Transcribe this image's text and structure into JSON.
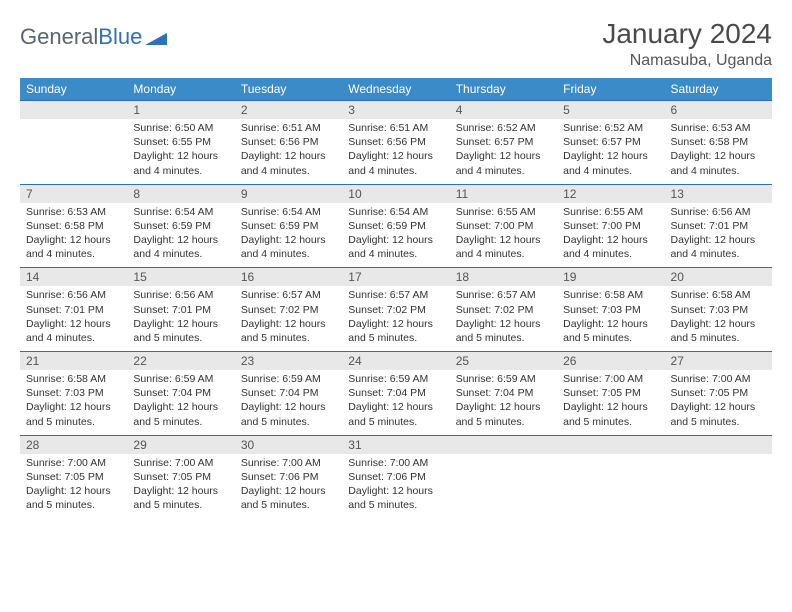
{
  "logo": {
    "part1": "General",
    "part2": "Blue"
  },
  "title": "January 2024",
  "location": "Namasuba, Uganda",
  "colors": {
    "header_bg": "#3b8bc9",
    "header_text": "#ffffff",
    "daynum_bg": "#e8e8e8",
    "border": "#2d72b8",
    "logo_gray": "#5a6570",
    "logo_blue": "#2d72b8"
  },
  "weekdays": [
    "Sunday",
    "Monday",
    "Tuesday",
    "Wednesday",
    "Thursday",
    "Friday",
    "Saturday"
  ],
  "weeks": [
    [
      {
        "n": "",
        "empty": true
      },
      {
        "n": "1",
        "sunrise": "Sunrise: 6:50 AM",
        "sunset": "Sunset: 6:55 PM",
        "day1": "Daylight: 12 hours",
        "day2": "and 4 minutes."
      },
      {
        "n": "2",
        "sunrise": "Sunrise: 6:51 AM",
        "sunset": "Sunset: 6:56 PM",
        "day1": "Daylight: 12 hours",
        "day2": "and 4 minutes."
      },
      {
        "n": "3",
        "sunrise": "Sunrise: 6:51 AM",
        "sunset": "Sunset: 6:56 PM",
        "day1": "Daylight: 12 hours",
        "day2": "and 4 minutes."
      },
      {
        "n": "4",
        "sunrise": "Sunrise: 6:52 AM",
        "sunset": "Sunset: 6:57 PM",
        "day1": "Daylight: 12 hours",
        "day2": "and 4 minutes."
      },
      {
        "n": "5",
        "sunrise": "Sunrise: 6:52 AM",
        "sunset": "Sunset: 6:57 PM",
        "day1": "Daylight: 12 hours",
        "day2": "and 4 minutes."
      },
      {
        "n": "6",
        "sunrise": "Sunrise: 6:53 AM",
        "sunset": "Sunset: 6:58 PM",
        "day1": "Daylight: 12 hours",
        "day2": "and 4 minutes."
      }
    ],
    [
      {
        "n": "7",
        "sunrise": "Sunrise: 6:53 AM",
        "sunset": "Sunset: 6:58 PM",
        "day1": "Daylight: 12 hours",
        "day2": "and 4 minutes."
      },
      {
        "n": "8",
        "sunrise": "Sunrise: 6:54 AM",
        "sunset": "Sunset: 6:59 PM",
        "day1": "Daylight: 12 hours",
        "day2": "and 4 minutes."
      },
      {
        "n": "9",
        "sunrise": "Sunrise: 6:54 AM",
        "sunset": "Sunset: 6:59 PM",
        "day1": "Daylight: 12 hours",
        "day2": "and 4 minutes."
      },
      {
        "n": "10",
        "sunrise": "Sunrise: 6:54 AM",
        "sunset": "Sunset: 6:59 PM",
        "day1": "Daylight: 12 hours",
        "day2": "and 4 minutes."
      },
      {
        "n": "11",
        "sunrise": "Sunrise: 6:55 AM",
        "sunset": "Sunset: 7:00 PM",
        "day1": "Daylight: 12 hours",
        "day2": "and 4 minutes."
      },
      {
        "n": "12",
        "sunrise": "Sunrise: 6:55 AM",
        "sunset": "Sunset: 7:00 PM",
        "day1": "Daylight: 12 hours",
        "day2": "and 4 minutes."
      },
      {
        "n": "13",
        "sunrise": "Sunrise: 6:56 AM",
        "sunset": "Sunset: 7:01 PM",
        "day1": "Daylight: 12 hours",
        "day2": "and 4 minutes."
      }
    ],
    [
      {
        "n": "14",
        "sunrise": "Sunrise: 6:56 AM",
        "sunset": "Sunset: 7:01 PM",
        "day1": "Daylight: 12 hours",
        "day2": "and 4 minutes."
      },
      {
        "n": "15",
        "sunrise": "Sunrise: 6:56 AM",
        "sunset": "Sunset: 7:01 PM",
        "day1": "Daylight: 12 hours",
        "day2": "and 5 minutes."
      },
      {
        "n": "16",
        "sunrise": "Sunrise: 6:57 AM",
        "sunset": "Sunset: 7:02 PM",
        "day1": "Daylight: 12 hours",
        "day2": "and 5 minutes."
      },
      {
        "n": "17",
        "sunrise": "Sunrise: 6:57 AM",
        "sunset": "Sunset: 7:02 PM",
        "day1": "Daylight: 12 hours",
        "day2": "and 5 minutes."
      },
      {
        "n": "18",
        "sunrise": "Sunrise: 6:57 AM",
        "sunset": "Sunset: 7:02 PM",
        "day1": "Daylight: 12 hours",
        "day2": "and 5 minutes."
      },
      {
        "n": "19",
        "sunrise": "Sunrise: 6:58 AM",
        "sunset": "Sunset: 7:03 PM",
        "day1": "Daylight: 12 hours",
        "day2": "and 5 minutes."
      },
      {
        "n": "20",
        "sunrise": "Sunrise: 6:58 AM",
        "sunset": "Sunset: 7:03 PM",
        "day1": "Daylight: 12 hours",
        "day2": "and 5 minutes."
      }
    ],
    [
      {
        "n": "21",
        "sunrise": "Sunrise: 6:58 AM",
        "sunset": "Sunset: 7:03 PM",
        "day1": "Daylight: 12 hours",
        "day2": "and 5 minutes."
      },
      {
        "n": "22",
        "sunrise": "Sunrise: 6:59 AM",
        "sunset": "Sunset: 7:04 PM",
        "day1": "Daylight: 12 hours",
        "day2": "and 5 minutes."
      },
      {
        "n": "23",
        "sunrise": "Sunrise: 6:59 AM",
        "sunset": "Sunset: 7:04 PM",
        "day1": "Daylight: 12 hours",
        "day2": "and 5 minutes."
      },
      {
        "n": "24",
        "sunrise": "Sunrise: 6:59 AM",
        "sunset": "Sunset: 7:04 PM",
        "day1": "Daylight: 12 hours",
        "day2": "and 5 minutes."
      },
      {
        "n": "25",
        "sunrise": "Sunrise: 6:59 AM",
        "sunset": "Sunset: 7:04 PM",
        "day1": "Daylight: 12 hours",
        "day2": "and 5 minutes."
      },
      {
        "n": "26",
        "sunrise": "Sunrise: 7:00 AM",
        "sunset": "Sunset: 7:05 PM",
        "day1": "Daylight: 12 hours",
        "day2": "and 5 minutes."
      },
      {
        "n": "27",
        "sunrise": "Sunrise: 7:00 AM",
        "sunset": "Sunset: 7:05 PM",
        "day1": "Daylight: 12 hours",
        "day2": "and 5 minutes."
      }
    ],
    [
      {
        "n": "28",
        "sunrise": "Sunrise: 7:00 AM",
        "sunset": "Sunset: 7:05 PM",
        "day1": "Daylight: 12 hours",
        "day2": "and 5 minutes."
      },
      {
        "n": "29",
        "sunrise": "Sunrise: 7:00 AM",
        "sunset": "Sunset: 7:05 PM",
        "day1": "Daylight: 12 hours",
        "day2": "and 5 minutes."
      },
      {
        "n": "30",
        "sunrise": "Sunrise: 7:00 AM",
        "sunset": "Sunset: 7:06 PM",
        "day1": "Daylight: 12 hours",
        "day2": "and 5 minutes."
      },
      {
        "n": "31",
        "sunrise": "Sunrise: 7:00 AM",
        "sunset": "Sunset: 7:06 PM",
        "day1": "Daylight: 12 hours",
        "day2": "and 5 minutes."
      },
      {
        "n": "",
        "empty": true
      },
      {
        "n": "",
        "empty": true
      },
      {
        "n": "",
        "empty": true
      }
    ]
  ]
}
